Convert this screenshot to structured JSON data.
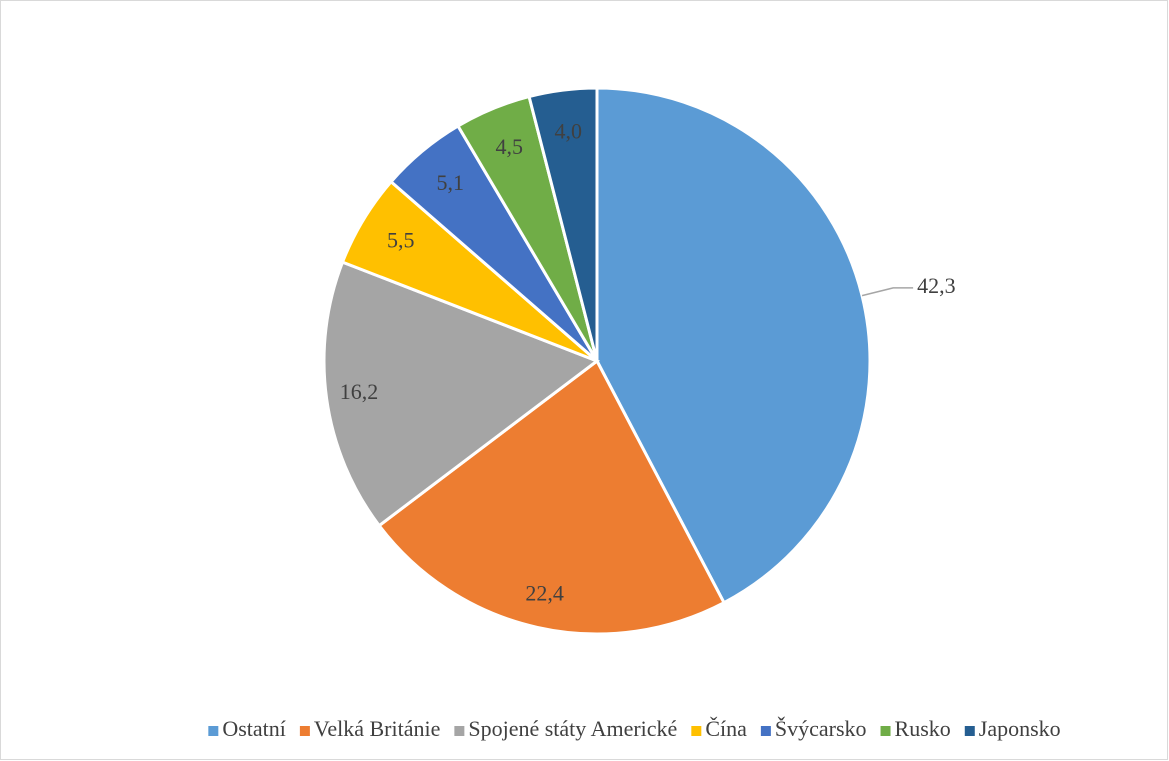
{
  "chart_data": {
    "type": "pie",
    "categories": [
      "Ostatní",
      "Velká Británie",
      "Spojené státy Americké",
      "Čína",
      "Švýcarsko",
      "Rusko",
      "Japonsko"
    ],
    "values": [
      42.3,
      22.4,
      16.2,
      5.5,
      5.1,
      4.5,
      4.0
    ],
    "value_labels": [
      "42,3",
      "22,4",
      "16,2",
      "5,5",
      "5,1",
      "4,5",
      "4,0"
    ],
    "colors": [
      "#5b9bd5",
      "#ed7d31",
      "#a5a5a5",
      "#ffc000",
      "#4472c4",
      "#70ad47",
      "#255e91"
    ],
    "legend": "bottom"
  }
}
